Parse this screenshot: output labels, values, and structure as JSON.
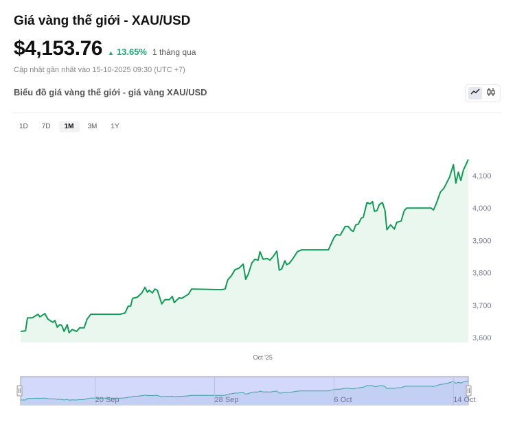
{
  "header": {
    "title": "Giá vàng thế giới - XAU/USD",
    "price": "$4,153.76",
    "change": "13.65%",
    "change_direction_icon": "triangle-up-icon",
    "change_period": "1 tháng qua",
    "updated": "Cập nhật gần nhất vào 15-10-2025 09:30 (UTC +7)",
    "subtitle": "Biểu đồ giá vàng thế giới - giá vàng XAU/USD"
  },
  "chart_toggle": {
    "options": [
      {
        "icon": "line-chart-icon",
        "active": true
      },
      {
        "icon": "candlestick-icon",
        "active": false
      }
    ]
  },
  "ranges": [
    {
      "label": "1D"
    },
    {
      "label": "7D"
    },
    {
      "label": "1M",
      "active": true
    },
    {
      "label": "3M"
    },
    {
      "label": "1Y"
    }
  ],
  "colors": {
    "line": "#0f9a55",
    "fill": "#e9f7ef",
    "up": "#1aa870",
    "navigator_bg": "#d3d9fb",
    "navigator_fill": "#c3cff3",
    "navigator_line": "#3aa0a0"
  },
  "chart_data": {
    "type": "area",
    "xlim": [
      "2025-09-15T00:00",
      "2025-10-15T00:00"
    ],
    "ylim": [
      3600,
      4100
    ],
    "yticks": [
      "3,600",
      "3,700",
      "3,800",
      "3,900",
      "4,000",
      "4,100"
    ],
    "ytick_values": [
      3600,
      3700,
      3800,
      3900,
      4000,
      4100
    ],
    "x_tick_labels": [
      "Oct '25"
    ],
    "x_tick_dates": [
      "2025-10-01T00:00"
    ],
    "navigator_labels": [
      "20 Sep",
      "28 Sep",
      "6 Oct",
      "14 Oct"
    ],
    "navigator_dates": [
      "2025-09-20T00:00",
      "2025-09-28T00:00",
      "2025-10-06T00:00",
      "2025-10-14T00:00"
    ],
    "grid": false,
    "points": [
      [
        "2025-09-15T00:00",
        3619
      ],
      [
        "2025-09-15T08:00",
        3621
      ],
      [
        "2025-09-15T11:00",
        3661
      ],
      [
        "2025-09-15T19:00",
        3661
      ],
      [
        "2025-09-16T04:00",
        3672
      ],
      [
        "2025-09-16T07:00",
        3664
      ],
      [
        "2025-09-16T15:00",
        3674
      ],
      [
        "2025-09-16T20:00",
        3657
      ],
      [
        "2025-09-17T04:00",
        3647
      ],
      [
        "2025-09-17T07:00",
        3653
      ],
      [
        "2025-09-17T11:00",
        3632
      ],
      [
        "2025-09-17T15:00",
        3640
      ],
      [
        "2025-09-17T18:00",
        3638
      ],
      [
        "2025-09-17T22:00",
        3619
      ],
      [
        "2025-09-18T03:00",
        3640
      ],
      [
        "2025-09-18T06:00",
        3615
      ],
      [
        "2025-09-18T11:00",
        3625
      ],
      [
        "2025-09-18T18:00",
        3619
      ],
      [
        "2025-09-18T23:00",
        3630
      ],
      [
        "2025-09-19T06:00",
        3630
      ],
      [
        "2025-09-19T11:00",
        3657
      ],
      [
        "2025-09-19T17:00",
        3672
      ],
      [
        "2025-09-21T16:00",
        3672
      ],
      [
        "2025-09-22T00:00",
        3676
      ],
      [
        "2025-09-22T05:00",
        3697
      ],
      [
        "2025-09-22T09:00",
        3697
      ],
      [
        "2025-09-22T12:00",
        3721
      ],
      [
        "2025-09-22T20:00",
        3725
      ],
      [
        "2025-09-23T03:00",
        3738
      ],
      [
        "2025-09-23T08:00",
        3755
      ],
      [
        "2025-09-23T12:00",
        3740
      ],
      [
        "2025-09-23T15:00",
        3746
      ],
      [
        "2025-09-23T20:00",
        3738
      ],
      [
        "2025-09-24T00:00",
        3750
      ],
      [
        "2025-09-24T04:00",
        3746
      ],
      [
        "2025-09-24T11:00",
        3704
      ],
      [
        "2025-09-24T16:00",
        3717
      ],
      [
        "2025-09-24T23:00",
        3717
      ],
      [
        "2025-09-25T04:00",
        3727
      ],
      [
        "2025-09-25T07:00",
        3708
      ],
      [
        "2025-09-25T15:00",
        3723
      ],
      [
        "2025-09-25T19:00",
        3721
      ],
      [
        "2025-09-26T06:00",
        3734
      ],
      [
        "2025-09-26T11:00",
        3750
      ],
      [
        "2025-09-28T11:00",
        3748
      ],
      [
        "2025-09-28T17:00",
        3750
      ],
      [
        "2025-09-28T21:00",
        3778
      ],
      [
        "2025-09-29T03:00",
        3791
      ],
      [
        "2025-09-29T09:00",
        3810
      ],
      [
        "2025-09-29T15:00",
        3814
      ],
      [
        "2025-09-29T22:00",
        3827
      ],
      [
        "2025-09-30T02:00",
        3780
      ],
      [
        "2025-09-30T06:00",
        3795
      ],
      [
        "2025-09-30T12:00",
        3831
      ],
      [
        "2025-09-30T17:00",
        3842
      ],
      [
        "2025-09-30T22:00",
        3839
      ],
      [
        "2025-10-01T01:00",
        3865
      ],
      [
        "2025-10-01T06:00",
        3842
      ],
      [
        "2025-10-01T13:00",
        3844
      ],
      [
        "2025-10-01T17:00",
        3839
      ],
      [
        "2025-10-01T22:00",
        3850
      ],
      [
        "2025-10-02T04:00",
        3867
      ],
      [
        "2025-10-02T08:00",
        3808
      ],
      [
        "2025-10-02T12:00",
        3812
      ],
      [
        "2025-10-02T17:00",
        3837
      ],
      [
        "2025-10-02T20:00",
        3825
      ],
      [
        "2025-10-03T00:00",
        3829
      ],
      [
        "2025-10-03T06:00",
        3844
      ],
      [
        "2025-10-03T13:00",
        3865
      ],
      [
        "2025-10-03T20:00",
        3871
      ],
      [
        "2025-10-05T15:00",
        3871
      ],
      [
        "2025-10-06T00:00",
        3909
      ],
      [
        "2025-10-06T04:00",
        3918
      ],
      [
        "2025-10-06T10:00",
        3916
      ],
      [
        "2025-10-06T18:00",
        3943
      ],
      [
        "2025-10-06T23:00",
        3943
      ],
      [
        "2025-10-07T04:00",
        3931
      ],
      [
        "2025-10-07T07:00",
        3928
      ],
      [
        "2025-10-07T11:00",
        3948
      ],
      [
        "2025-10-07T15:00",
        3950
      ],
      [
        "2025-10-07T20:00",
        3969
      ],
      [
        "2025-10-07T23:00",
        3971
      ],
      [
        "2025-10-08T05:00",
        4017
      ],
      [
        "2025-10-08T10:00",
        4013
      ],
      [
        "2025-10-08T14:00",
        4020
      ],
      [
        "2025-10-08T17:00",
        3990
      ],
      [
        "2025-10-08T21:00",
        3992
      ],
      [
        "2025-10-09T01:00",
        4011
      ],
      [
        "2025-10-09T06:00",
        4017
      ],
      [
        "2025-10-09T10:00",
        3992
      ],
      [
        "2025-10-09T13:00",
        3933
      ],
      [
        "2025-10-09T19:00",
        3948
      ],
      [
        "2025-10-10T01:00",
        3935
      ],
      [
        "2025-10-10T05:00",
        3956
      ],
      [
        "2025-10-10T12:00",
        3960
      ],
      [
        "2025-10-10T17:00",
        3992
      ],
      [
        "2025-10-10T21:00",
        4000
      ],
      [
        "2025-10-12T12:00",
        4000
      ],
      [
        "2025-10-12T16:00",
        3994
      ],
      [
        "2025-10-12T20:00",
        4011
      ],
      [
        "2025-10-13T03:00",
        4049
      ],
      [
        "2025-10-13T09:00",
        4062
      ],
      [
        "2025-10-13T18:00",
        4096
      ],
      [
        "2025-10-14T00:00",
        4134
      ],
      [
        "2025-10-14T04:00",
        4077
      ],
      [
        "2025-10-14T08:00",
        4111
      ],
      [
        "2025-10-14T12:00",
        4085
      ],
      [
        "2025-10-14T16:00",
        4117
      ],
      [
        "2025-10-15T00:00",
        4150
      ]
    ]
  }
}
